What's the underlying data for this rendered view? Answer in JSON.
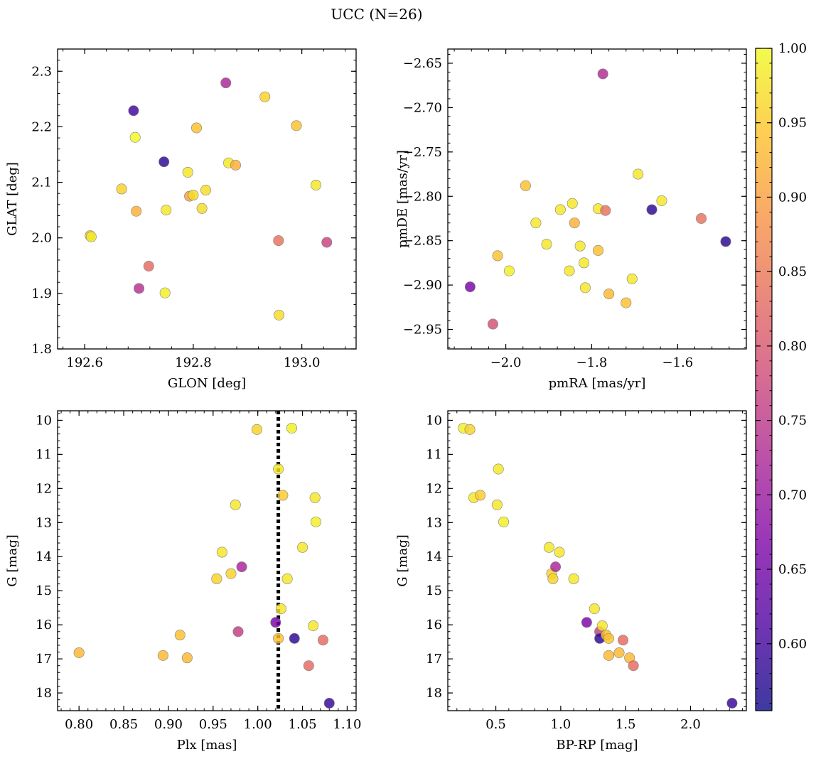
{
  "figure": {
    "title": "UCC (N=26)",
    "colorbar": {
      "colormap": "plasma",
      "min": 0.555,
      "max": 1.0,
      "ticks": [
        "1.00",
        "0.95",
        "0.90",
        "0.85",
        "0.80",
        "0.75",
        "0.70",
        "0.65",
        "0.60"
      ],
      "tick_values": [
        1.0,
        0.95,
        0.9,
        0.85,
        0.8,
        0.75,
        0.7,
        0.65,
        0.6
      ]
    }
  },
  "chart_data": [
    {
      "type": "scatter",
      "id": "glon-glat",
      "xlabel": "GLON [deg]",
      "ylabel": "GLAT [deg]",
      "xlim": [
        192.55,
        193.1
      ],
      "ylim": [
        1.8,
        2.34
      ],
      "xticks": [
        "192.6",
        "192.8",
        "193.0"
      ],
      "xtick_values": [
        192.6,
        192.8,
        193.0
      ],
      "yticks": [
        "1.8",
        "1.9",
        "2.0",
        "2.1",
        "2.2",
        "2.3"
      ],
      "ytick_values": [
        1.8,
        1.9,
        2.0,
        2.1,
        2.2,
        2.3
      ],
      "points": [
        {
          "x": 192.61,
          "y": 2.004,
          "c": 0.93
        },
        {
          "x": 192.612,
          "y": 2.002,
          "c": 0.99
        },
        {
          "x": 192.668,
          "y": 2.088,
          "c": 0.96
        },
        {
          "x": 192.69,
          "y": 2.229,
          "c": 0.6
        },
        {
          "x": 192.693,
          "y": 2.181,
          "c": 1.0
        },
        {
          "x": 192.695,
          "y": 2.048,
          "c": 0.92
        },
        {
          "x": 192.7,
          "y": 1.909,
          "c": 0.74
        },
        {
          "x": 192.718,
          "y": 1.949,
          "c": 0.83
        },
        {
          "x": 192.746,
          "y": 2.137,
          "c": 0.58
        },
        {
          "x": 192.748,
          "y": 1.901,
          "c": 0.99
        },
        {
          "x": 192.75,
          "y": 2.05,
          "c": 0.98
        },
        {
          "x": 192.79,
          "y": 2.118,
          "c": 0.98
        },
        {
          "x": 192.793,
          "y": 2.075,
          "c": 0.9
        },
        {
          "x": 192.8,
          "y": 2.077,
          "c": 0.97
        },
        {
          "x": 192.806,
          "y": 2.198,
          "c": 0.94
        },
        {
          "x": 192.816,
          "y": 2.053,
          "c": 0.97
        },
        {
          "x": 192.823,
          "y": 2.086,
          "c": 0.97
        },
        {
          "x": 192.86,
          "y": 2.279,
          "c": 0.72
        },
        {
          "x": 192.865,
          "y": 2.135,
          "c": 0.98
        },
        {
          "x": 192.878,
          "y": 2.131,
          "c": 0.92
        },
        {
          "x": 192.932,
          "y": 2.254,
          "c": 0.96
        },
        {
          "x": 192.957,
          "y": 1.995,
          "c": 0.84
        },
        {
          "x": 192.958,
          "y": 1.861,
          "c": 0.97
        },
        {
          "x": 192.99,
          "y": 2.202,
          "c": 0.94
        },
        {
          "x": 193.026,
          "y": 2.095,
          "c": 0.98
        },
        {
          "x": 193.046,
          "y": 1.992,
          "c": 0.77
        }
      ]
    },
    {
      "type": "scatter",
      "id": "pmra-pmde",
      "xlabel": "pmRA [mas/yr]",
      "ylabel": "pmDE [mas/yr]",
      "xlim": [
        -2.135,
        -1.44
      ],
      "ylim": [
        -2.972,
        -2.634
      ],
      "xticks": [
        "−2.0",
        "−1.8",
        "−1.6"
      ],
      "xtick_values": [
        -2.0,
        -1.8,
        -1.6
      ],
      "yticks": [
        "−2.65",
        "−2.70",
        "−2.75",
        "−2.80",
        "−2.85",
        "−2.90",
        "−2.95"
      ],
      "ytick_values": [
        -2.65,
        -2.7,
        -2.75,
        -2.8,
        -2.85,
        -2.9,
        -2.95
      ],
      "points": [
        {
          "x": -2.083,
          "y": -2.902,
          "c": 0.66
        },
        {
          "x": -2.03,
          "y": -2.944,
          "c": 0.79
        },
        {
          "x": -2.019,
          "y": -2.867,
          "c": 0.94
        },
        {
          "x": -1.992,
          "y": -2.884,
          "c": 0.99
        },
        {
          "x": -1.954,
          "y": -2.788,
          "c": 0.94
        },
        {
          "x": -1.93,
          "y": -2.83,
          "c": 0.98
        },
        {
          "x": -1.905,
          "y": -2.854,
          "c": 0.98
        },
        {
          "x": -1.873,
          "y": -2.815,
          "c": 0.98
        },
        {
          "x": -1.852,
          "y": -2.884,
          "c": 0.98
        },
        {
          "x": -1.845,
          "y": -2.808,
          "c": 0.98
        },
        {
          "x": -1.84,
          "y": -2.83,
          "c": 0.92
        },
        {
          "x": -1.827,
          "y": -2.856,
          "c": 0.98
        },
        {
          "x": -1.818,
          "y": -2.875,
          "c": 0.98
        },
        {
          "x": -1.815,
          "y": -2.903,
          "c": 0.98
        },
        {
          "x": -1.785,
          "y": -2.861,
          "c": 0.94
        },
        {
          "x": -1.785,
          "y": -2.814,
          "c": 0.98
        },
        {
          "x": -1.774,
          "y": -2.662,
          "c": 0.73
        },
        {
          "x": -1.768,
          "y": -2.816,
          "c": 0.84
        },
        {
          "x": -1.76,
          "y": -2.91,
          "c": 0.93
        },
        {
          "x": -1.72,
          "y": -2.92,
          "c": 0.94
        },
        {
          "x": -1.706,
          "y": -2.893,
          "c": 0.98
        },
        {
          "x": -1.692,
          "y": -2.775,
          "c": 0.98
        },
        {
          "x": -1.66,
          "y": -2.815,
          "c": 0.58
        },
        {
          "x": -1.637,
          "y": -2.805,
          "c": 0.98
        },
        {
          "x": -1.545,
          "y": -2.825,
          "c": 0.84
        },
        {
          "x": -1.488,
          "y": -2.851,
          "c": 0.58
        }
      ]
    },
    {
      "type": "scatter",
      "id": "plx-g",
      "xlabel": "Plx [mas]",
      "ylabel": "G [mag]",
      "xlim": [
        0.776,
        1.11
      ],
      "ylim": [
        18.52,
        9.72
      ],
      "y_inverted": true,
      "xticks": [
        "0.80",
        "0.85",
        "0.90",
        "0.95",
        "1.00",
        "1.05",
        "1.10"
      ],
      "xtick_values": [
        0.8,
        0.85,
        0.9,
        0.95,
        1.0,
        1.05,
        1.1
      ],
      "yticks": [
        "10",
        "11",
        "12",
        "13",
        "14",
        "15",
        "16",
        "17",
        "18"
      ],
      "ytick_values": [
        10,
        11,
        12,
        13,
        14,
        15,
        16,
        17,
        18
      ],
      "vline": 1.023,
      "points": [
        {
          "x": 0.8,
          "y": 16.82,
          "c": 0.93
        },
        {
          "x": 0.894,
          "y": 16.9,
          "c": 0.93
        },
        {
          "x": 0.913,
          "y": 16.3,
          "c": 0.94
        },
        {
          "x": 0.921,
          "y": 16.97,
          "c": 0.93
        },
        {
          "x": 0.954,
          "y": 14.65,
          "c": 0.96
        },
        {
          "x": 0.96,
          "y": 13.87,
          "c": 0.98
        },
        {
          "x": 0.97,
          "y": 14.5,
          "c": 0.96
        },
        {
          "x": 0.975,
          "y": 12.48,
          "c": 0.98
        },
        {
          "x": 0.978,
          "y": 16.2,
          "c": 0.76
        },
        {
          "x": 0.982,
          "y": 14.3,
          "c": 0.72
        },
        {
          "x": 0.999,
          "y": 10.27,
          "c": 0.96
        },
        {
          "x": 1.02,
          "y": 15.93,
          "c": 0.66
        },
        {
          "x": 1.023,
          "y": 11.43,
          "c": 0.98
        },
        {
          "x": 1.023,
          "y": 16.4,
          "c": 0.94
        },
        {
          "x": 1.026,
          "y": 15.53,
          "c": 0.98
        },
        {
          "x": 1.028,
          "y": 12.2,
          "c": 0.95
        },
        {
          "x": 1.033,
          "y": 14.65,
          "c": 0.98
        },
        {
          "x": 1.038,
          "y": 10.23,
          "c": 0.99
        },
        {
          "x": 1.041,
          "y": 16.4,
          "c": 0.58
        },
        {
          "x": 1.05,
          "y": 13.73,
          "c": 0.98
        },
        {
          "x": 1.057,
          "y": 17.2,
          "c": 0.83
        },
        {
          "x": 1.062,
          "y": 16.03,
          "c": 0.98
        },
        {
          "x": 1.064,
          "y": 12.27,
          "c": 0.98
        },
        {
          "x": 1.065,
          "y": 12.98,
          "c": 0.99
        },
        {
          "x": 1.073,
          "y": 16.45,
          "c": 0.83
        },
        {
          "x": 1.08,
          "y": 18.3,
          "c": 0.59
        }
      ]
    },
    {
      "type": "scatter",
      "id": "bprp-g",
      "xlabel": "BP-RP [mag]",
      "ylabel": "G [mag]",
      "xlim": [
        0.13,
        2.43
      ],
      "ylim": [
        18.52,
        9.72
      ],
      "y_inverted": true,
      "xticks": [
        "0.5",
        "1.0",
        "1.5",
        "2.0"
      ],
      "xtick_values": [
        0.5,
        1.0,
        1.5,
        2.0
      ],
      "yticks": [
        "10",
        "11",
        "12",
        "13",
        "14",
        "15",
        "16",
        "17",
        "18"
      ],
      "ytick_values": [
        10,
        11,
        12,
        13,
        14,
        15,
        16,
        17,
        18
      ],
      "points": [
        {
          "x": 0.25,
          "y": 10.23,
          "c": 0.99
        },
        {
          "x": 0.3,
          "y": 10.27,
          "c": 0.96
        },
        {
          "x": 0.33,
          "y": 12.27,
          "c": 0.98
        },
        {
          "x": 0.38,
          "y": 12.2,
          "c": 0.95
        },
        {
          "x": 0.51,
          "y": 12.48,
          "c": 0.98
        },
        {
          "x": 0.52,
          "y": 11.43,
          "c": 0.98
        },
        {
          "x": 0.56,
          "y": 12.98,
          "c": 0.99
        },
        {
          "x": 0.91,
          "y": 13.73,
          "c": 0.98
        },
        {
          "x": 0.93,
          "y": 14.5,
          "c": 0.96
        },
        {
          "x": 0.94,
          "y": 14.65,
          "c": 0.96
        },
        {
          "x": 0.96,
          "y": 14.3,
          "c": 0.72
        },
        {
          "x": 0.99,
          "y": 13.87,
          "c": 0.98
        },
        {
          "x": 1.1,
          "y": 14.65,
          "c": 0.98
        },
        {
          "x": 1.2,
          "y": 15.93,
          "c": 0.66
        },
        {
          "x": 1.26,
          "y": 15.53,
          "c": 0.98
        },
        {
          "x": 1.3,
          "y": 16.2,
          "c": 0.76
        },
        {
          "x": 1.3,
          "y": 16.4,
          "c": 0.58
        },
        {
          "x": 1.32,
          "y": 16.03,
          "c": 0.98
        },
        {
          "x": 1.35,
          "y": 16.3,
          "c": 0.94
        },
        {
          "x": 1.37,
          "y": 16.4,
          "c": 0.94
        },
        {
          "x": 1.37,
          "y": 16.9,
          "c": 0.93
        },
        {
          "x": 1.45,
          "y": 16.82,
          "c": 0.93
        },
        {
          "x": 1.48,
          "y": 16.45,
          "c": 0.83
        },
        {
          "x": 1.53,
          "y": 16.97,
          "c": 0.93
        },
        {
          "x": 1.56,
          "y": 17.2,
          "c": 0.83
        },
        {
          "x": 2.32,
          "y": 18.3,
          "c": 0.59
        }
      ]
    }
  ]
}
